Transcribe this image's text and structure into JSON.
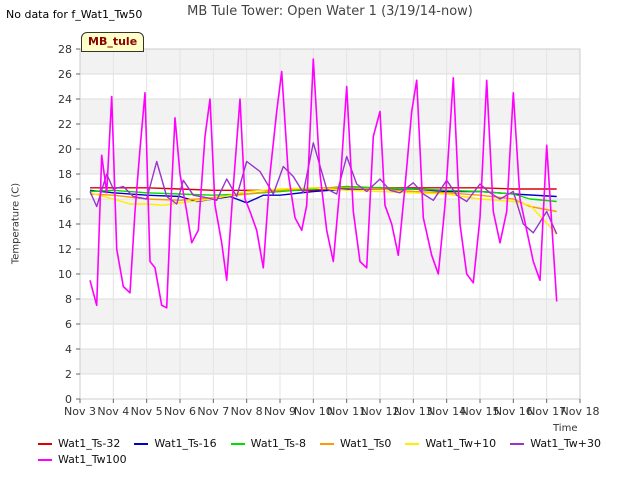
{
  "nodata_message": "No data for f_Wat1_Tw50",
  "badge_label": "MB_tule",
  "chart_data": {
    "type": "line",
    "title": "MB Tule Tower: Open Water 1 (3/19/14-now)",
    "xlabel": "Time",
    "ylabel": "Temperature (C)",
    "xlim": [
      3,
      18
    ],
    "ylim": [
      0,
      28
    ],
    "x_ticks": [
      3,
      4,
      5,
      6,
      7,
      8,
      9,
      10,
      11,
      12,
      13,
      14,
      15,
      16,
      17,
      18
    ],
    "x_tick_labels": [
      "Nov 3",
      "Nov 4",
      "Nov 5",
      "Nov 6",
      "Nov 7",
      "Nov 8",
      "Nov 9",
      "Nov 10",
      "Nov 11",
      "Nov 12",
      "Nov 13",
      "Nov 14",
      "Nov 15",
      "Nov 16",
      "Nov 17",
      "Nov 18"
    ],
    "y_ticks": [
      0,
      2,
      4,
      6,
      8,
      10,
      12,
      14,
      16,
      18,
      20,
      22,
      24,
      26,
      28
    ],
    "y_tick_labels": [
      "0",
      "2",
      "4",
      "6",
      "8",
      "10",
      "12",
      "14",
      "16",
      "18",
      "20",
      "22",
      "24",
      "26",
      "28"
    ],
    "grid": true,
    "legend_position": "bottom",
    "series": [
      {
        "name": "Wat1_Ts-32",
        "color": "#dd0000",
        "x": [
          3.3,
          4,
          5,
          6,
          7,
          8,
          9,
          10,
          11,
          12,
          13,
          14,
          15,
          16,
          17.3
        ],
        "y": [
          16.9,
          16.9,
          16.9,
          16.8,
          16.7,
          16.7,
          16.7,
          16.7,
          16.8,
          16.9,
          16.9,
          16.9,
          16.9,
          16.8,
          16.8
        ]
      },
      {
        "name": "Wat1_Ts-16",
        "color": "#0000cc",
        "x": [
          3.3,
          4,
          5,
          6,
          6.5,
          7,
          7.5,
          8,
          8.5,
          9,
          10,
          11,
          12,
          13,
          14,
          15,
          16,
          17.3
        ],
        "y": [
          16.7,
          16.5,
          16.3,
          16.2,
          15.8,
          16.0,
          16.2,
          15.7,
          16.3,
          16.3,
          16.6,
          16.8,
          16.8,
          16.8,
          16.6,
          16.6,
          16.4,
          16.2
        ]
      },
      {
        "name": "Wat1_Ts-8",
        "color": "#00dd00",
        "x": [
          3.3,
          4,
          5,
          6,
          7,
          8,
          9,
          10,
          11,
          12,
          13,
          14,
          15,
          16,
          16.5,
          17.3
        ],
        "y": [
          16.6,
          16.7,
          16.5,
          16.4,
          16.3,
          16.4,
          16.6,
          16.8,
          17.0,
          16.9,
          16.8,
          16.7,
          16.6,
          16.4,
          16.0,
          15.8
        ]
      },
      {
        "name": "Wat1_Ts0",
        "color": "#ff9900",
        "x": [
          3.3,
          4,
          5,
          6,
          7,
          8,
          9,
          10,
          11,
          12,
          13,
          14,
          15,
          16,
          16.5,
          17.3
        ],
        "y": [
          16.4,
          16.3,
          16.0,
          15.9,
          16.1,
          16.4,
          16.7,
          16.9,
          16.9,
          16.8,
          16.6,
          16.5,
          16.3,
          16.0,
          15.4,
          15.0
        ]
      },
      {
        "name": "Wat1_Tw+10",
        "color": "#ffee00",
        "x": [
          3.3,
          4,
          4.5,
          5,
          5.5,
          6,
          7,
          8,
          9,
          10,
          11,
          12,
          13,
          14,
          15,
          16,
          16.5,
          17.3
        ],
        "y": [
          16.5,
          16.0,
          15.6,
          15.6,
          15.5,
          15.7,
          16.0,
          16.6,
          16.8,
          16.9,
          16.7,
          16.6,
          16.5,
          16.4,
          16.0,
          15.8,
          15.5,
          13.2
        ]
      },
      {
        "name": "Wat1_Tw+30",
        "color": "#9933cc",
        "x": [
          3.3,
          3.5,
          3.8,
          4.0,
          4.3,
          4.6,
          5.0,
          5.3,
          5.6,
          5.9,
          6.1,
          6.4,
          6.8,
          7.1,
          7.4,
          7.7,
          8.0,
          8.4,
          8.8,
          9.1,
          9.4,
          9.7,
          10.0,
          10.4,
          10.7,
          11.0,
          11.3,
          11.6,
          12.0,
          12.3,
          12.6,
          13.0,
          13.3,
          13.6,
          14.0,
          14.3,
          14.6,
          15.0,
          15.3,
          15.6,
          16.0,
          16.3,
          16.6,
          17.0,
          17.3
        ],
        "y": [
          16.6,
          15.4,
          18.0,
          16.8,
          17.0,
          16.2,
          16.0,
          19.0,
          16.2,
          15.6,
          17.5,
          16.3,
          16.1,
          15.9,
          17.6,
          16.2,
          19.0,
          18.2,
          16.4,
          18.6,
          17.8,
          16.5,
          20.5,
          16.8,
          16.4,
          19.4,
          17.2,
          16.6,
          17.6,
          16.7,
          16.5,
          17.3,
          16.4,
          15.9,
          17.5,
          16.3,
          15.8,
          17.2,
          16.5,
          16.0,
          16.6,
          14.0,
          13.3,
          15.0,
          13.2
        ]
      },
      {
        "name": "Wat1_Tw100",
        "color": "#ff00ff",
        "x": [
          3.3,
          3.5,
          3.65,
          3.8,
          3.95,
          4.1,
          4.3,
          4.5,
          4.65,
          4.8,
          4.95,
          5.1,
          5.25,
          5.45,
          5.6,
          5.75,
          5.85,
          6.0,
          6.2,
          6.35,
          6.55,
          6.75,
          6.9,
          7.05,
          7.25,
          7.4,
          7.6,
          7.8,
          7.95,
          8.1,
          8.3,
          8.5,
          8.7,
          8.9,
          9.05,
          9.25,
          9.45,
          9.65,
          9.8,
          10.0,
          10.2,
          10.4,
          10.6,
          10.8,
          11.0,
          11.2,
          11.4,
          11.6,
          11.8,
          12.0,
          12.15,
          12.35,
          12.55,
          12.75,
          12.95,
          13.1,
          13.3,
          13.55,
          13.75,
          13.95,
          14.2,
          14.4,
          14.6,
          14.8,
          15.0,
          15.2,
          15.4,
          15.6,
          15.8,
          16.0,
          16.2,
          16.4,
          16.6,
          16.8,
          17.0,
          17.3
        ],
        "y": [
          9.5,
          7.5,
          19.5,
          16.5,
          24.2,
          12.0,
          9.0,
          8.5,
          15.0,
          20.0,
          24.5,
          11.0,
          10.5,
          7.5,
          7.3,
          17.0,
          22.5,
          18.0,
          15.0,
          12.5,
          13.5,
          21.0,
          24.0,
          15.5,
          12.5,
          9.5,
          17.0,
          24.0,
          16.0,
          15.0,
          13.5,
          10.5,
          18.0,
          23.0,
          26.2,
          18.0,
          14.5,
          13.5,
          15.5,
          27.2,
          18.0,
          13.5,
          11.0,
          17.0,
          25.0,
          15.0,
          11.0,
          10.5,
          21.0,
          23.0,
          15.5,
          14.0,
          11.5,
          17.0,
          23.0,
          25.5,
          14.5,
          11.5,
          10.0,
          15.5,
          25.7,
          14.0,
          10.0,
          9.3,
          14.5,
          25.5,
          15.0,
          12.5,
          15.0,
          24.5,
          16.0,
          13.5,
          11.0,
          9.5,
          20.3,
          7.8
        ]
      }
    ]
  }
}
